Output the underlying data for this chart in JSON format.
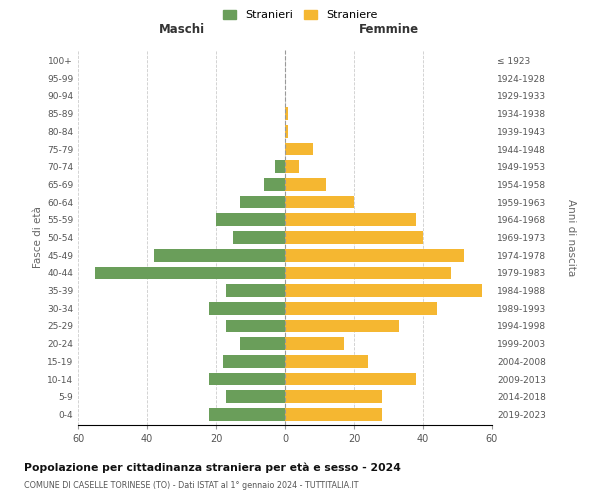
{
  "age_groups": [
    "0-4",
    "5-9",
    "10-14",
    "15-19",
    "20-24",
    "25-29",
    "30-34",
    "35-39",
    "40-44",
    "45-49",
    "50-54",
    "55-59",
    "60-64",
    "65-69",
    "70-74",
    "75-79",
    "80-84",
    "85-89",
    "90-94",
    "95-99",
    "100+"
  ],
  "birth_years": [
    "2019-2023",
    "2014-2018",
    "2009-2013",
    "2004-2008",
    "1999-2003",
    "1994-1998",
    "1989-1993",
    "1984-1988",
    "1979-1983",
    "1974-1978",
    "1969-1973",
    "1964-1968",
    "1959-1963",
    "1954-1958",
    "1949-1953",
    "1944-1948",
    "1939-1943",
    "1934-1938",
    "1929-1933",
    "1924-1928",
    "≤ 1923"
  ],
  "maschi": [
    22,
    17,
    22,
    18,
    13,
    17,
    22,
    17,
    55,
    38,
    15,
    20,
    13,
    6,
    3,
    0,
    0,
    0,
    0,
    0,
    0
  ],
  "femmine": [
    28,
    28,
    38,
    24,
    17,
    33,
    44,
    57,
    48,
    52,
    40,
    38,
    20,
    12,
    4,
    8,
    1,
    1,
    0,
    0,
    0
  ],
  "male_color": "#6a9e5a",
  "female_color": "#f5b731",
  "title": "Popolazione per cittadinanza straniera per età e sesso - 2024",
  "subtitle": "COMUNE DI CASELLE TORINESE (TO) - Dati ISTAT al 1° gennaio 2024 - TUTTITALIA.IT",
  "xlabel_left": "Maschi",
  "xlabel_right": "Femmine",
  "ylabel_left": "Fasce di età",
  "ylabel_right": "Anni di nascita",
  "legend_male": "Stranieri",
  "legend_female": "Straniere",
  "xlim": 60,
  "background_color": "#ffffff",
  "grid_color": "#cccccc"
}
